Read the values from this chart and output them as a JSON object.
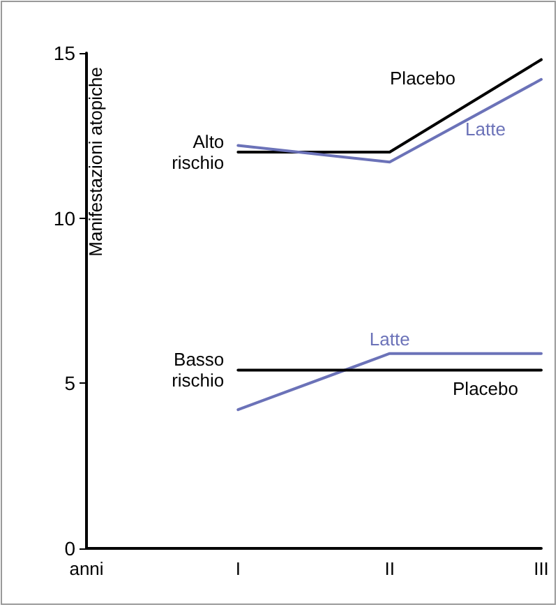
{
  "chart_data": {
    "type": "line",
    "xlabel": "anni",
    "ylabel": "Manifestazioni atopiche",
    "categories": [
      "I",
      "II",
      "III"
    ],
    "series": [
      {
        "name": "Placebo",
        "color": "#000000",
        "values": [
          12.0,
          12.0,
          14.8
        ]
      },
      {
        "name": "Latte",
        "color": "#6b72b8",
        "values": [
          12.2,
          11.7,
          14.2
        ]
      },
      {
        "name": "Latte",
        "color": "#6b72b8",
        "values": [
          4.2,
          5.9,
          5.9
        ]
      },
      {
        "name": "Placebo",
        "color": "#000000",
        "values": [
          5.4,
          5.4,
          5.4
        ]
      }
    ],
    "annotations": [
      {
        "text": "Alto rischio",
        "x": "I",
        "y": 12
      },
      {
        "text": "Basso rischio",
        "x": "I",
        "y": 5.4
      }
    ],
    "ylim": [
      0,
      15
    ],
    "yticks": [
      0,
      5,
      10,
      15
    ],
    "grid": false,
    "legend": false,
    "marker": "none",
    "line_style": "solid"
  }
}
